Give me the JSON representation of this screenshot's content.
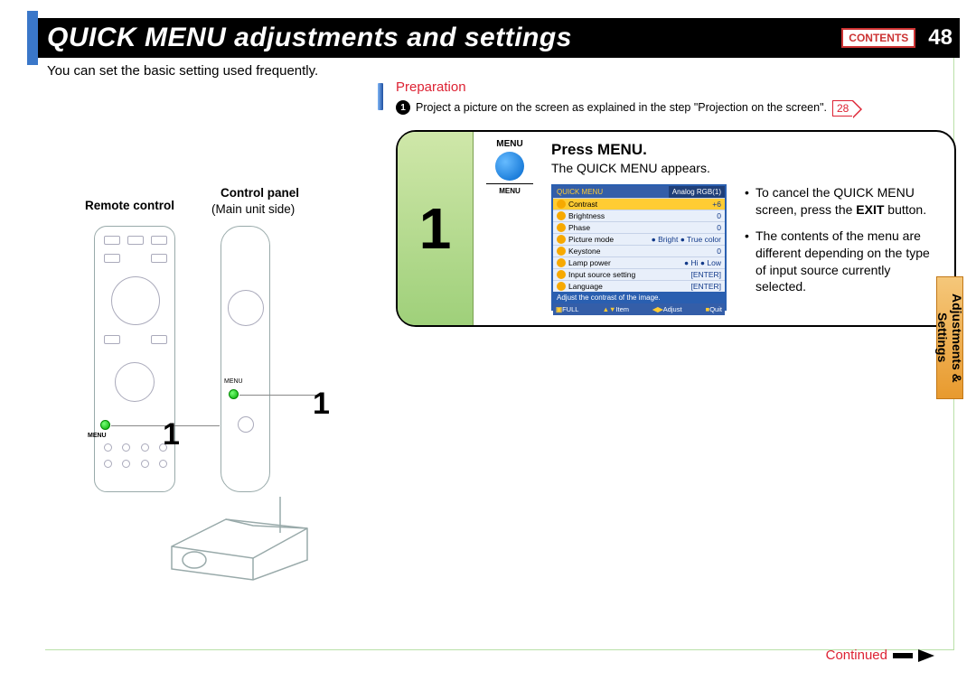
{
  "page": {
    "title": "QUICK MENU adjustments and settings",
    "contents_label": "CONTENTS",
    "number": "48",
    "intro": "You can set the basic setting used frequently.",
    "side_tab": "Adjustments &\nSettings",
    "continued": "Continued"
  },
  "labels": {
    "remote": "Remote control",
    "control_panel": "Control panel",
    "main_unit": "(Main unit side)",
    "menu_small": "MENU"
  },
  "callout_numbers": {
    "a": "1",
    "b": "1"
  },
  "preparation": {
    "title": "Preparation",
    "bullet_num": "1",
    "text": "Project a picture on the screen as explained in the step \"Projection on the screen\".",
    "ref": "28"
  },
  "step": {
    "num": "1",
    "menu_upper": "MENU",
    "menu_lower": "MENU",
    "title": "Press MENU.",
    "subtitle": "The QUICK MENU appears.",
    "bullets": [
      "To cancel the QUICK MENU screen, press the EXIT button.",
      "The contents of the menu are different depending on the type of input source currently selected."
    ]
  },
  "osd": {
    "header_left": "QUICK MENU",
    "header_right": "Analog RGB(1)",
    "rows": [
      {
        "name": "Contrast",
        "value": "+6",
        "selected": true
      },
      {
        "name": "Brightness",
        "value": "0"
      },
      {
        "name": "Phase",
        "value": "0"
      },
      {
        "name": "Picture mode",
        "value": "● Bright   ● True color"
      },
      {
        "name": "Keystone",
        "value": "0"
      },
      {
        "name": "Lamp power",
        "value": "● Hi   ● Low"
      },
      {
        "name": "Input source setting",
        "value": "[ENTER]"
      },
      {
        "name": "Language",
        "value": "[ENTER]"
      }
    ],
    "message": "Adjust the contrast of the image.",
    "footer": {
      "full": "FULL",
      "item": "Item",
      "adjust": "Adjust",
      "quit": "Quit"
    }
  },
  "colors": {
    "accent_blue": "#3a77c9",
    "accent_red": "#d23333",
    "step_green_top": "#cfe7a9",
    "step_green_bottom": "#9fd07a",
    "sidetab_top": "#f5c77a",
    "sidetab_bottom": "#e89a2e",
    "osd_blue": "#2a5fb0",
    "osd_highlight": "#ffcc33"
  }
}
